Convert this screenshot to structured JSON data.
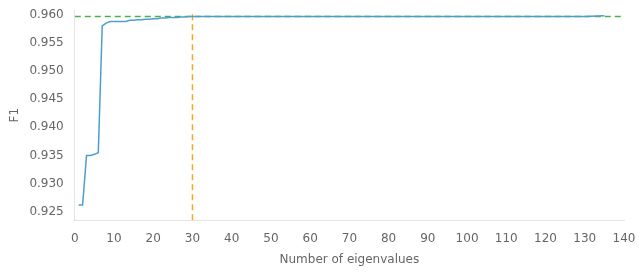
{
  "chart_data": {
    "type": "line",
    "xlabel": "Number of eigenvalues",
    "ylabel": "F1",
    "x": [
      1,
      2,
      3,
      4,
      5,
      6,
      7,
      8,
      9,
      10,
      11,
      12,
      13,
      14,
      15,
      16,
      17,
      18,
      19,
      20,
      21,
      22,
      23,
      24,
      25,
      26,
      27,
      28,
      29,
      30,
      35,
      40,
      50,
      60,
      70,
      80,
      90,
      100,
      110,
      120,
      130,
      135
    ],
    "values": [
      0.9262,
      0.9262,
      0.935,
      0.935,
      0.9352,
      0.9355,
      0.958,
      0.9585,
      0.9588,
      0.9588,
      0.9588,
      0.9588,
      0.9588,
      0.959,
      0.959,
      0.9591,
      0.9591,
      0.9592,
      0.9592,
      0.9593,
      0.9593,
      0.9594,
      0.9594,
      0.9595,
      0.9595,
      0.9595,
      0.9596,
      0.9596,
      0.9597,
      0.9597,
      0.9597,
      0.9597,
      0.9597,
      0.9597,
      0.9597,
      0.9597,
      0.9597,
      0.9597,
      0.9597,
      0.9597,
      0.9597,
      0.9598
    ],
    "color": "#4d9fca",
    "hlines": [
      {
        "y": 0.9597,
        "color": "#4caf4f",
        "line_style": "dashed"
      }
    ],
    "vlines": [
      {
        "x": 30,
        "color": "#f5a623",
        "line_style": "dashed"
      }
    ],
    "xlim": [
      0,
      140
    ],
    "xticks": [
      0,
      10,
      20,
      30,
      40,
      50,
      60,
      70,
      80,
      90,
      100,
      110,
      120,
      130,
      140
    ],
    "ylim": [
      0.9235,
      0.9608
    ],
    "yticks": [
      {
        "value": 0.925,
        "label": "0.925"
      },
      {
        "value": 0.93,
        "label": "0.930"
      },
      {
        "value": 0.935,
        "label": "0.935"
      },
      {
        "value": 0.94,
        "label": "0.940"
      },
      {
        "value": 0.945,
        "label": "0.945"
      },
      {
        "value": 0.95,
        "label": "0.950"
      },
      {
        "value": 0.955,
        "label": "0.955"
      },
      {
        "value": 0.96,
        "label": "0.960"
      }
    ],
    "grid": false
  }
}
